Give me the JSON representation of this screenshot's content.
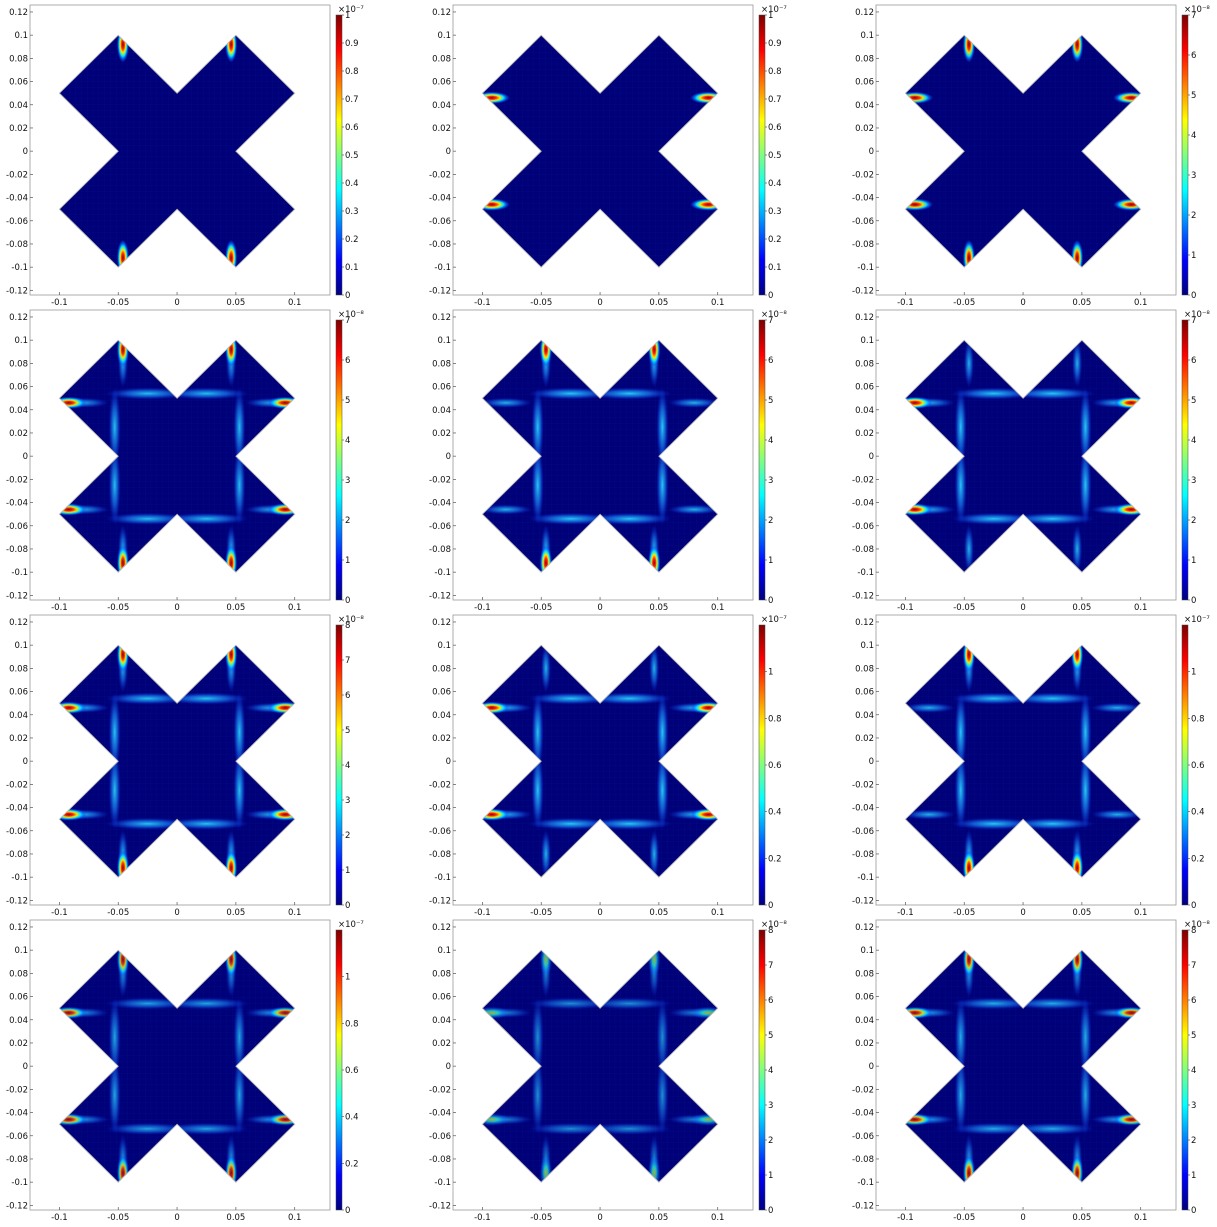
{
  "figure": {
    "rows": 4,
    "cols": 3,
    "colorbar_colors": [
      "#00007f",
      "#0000ff",
      "#007fff",
      "#00ffff",
      "#7fff7f",
      "#ffff00",
      "#ff7f00",
      "#ff0000",
      "#7f0000"
    ],
    "shape_fill": "#00007a",
    "grid_color": "#0a1e7a",
    "hotspot_colors": [
      "#0b5cff",
      "#00e5ff",
      "#ffe600",
      "#ff3a00",
      "#8b0000"
    ],
    "x_ticks": [
      "-0.1",
      "-0.05",
      "0",
      "0.05",
      "0.1"
    ],
    "y_ticks": [
      "0.12",
      "0.1",
      "0.08",
      "0.06",
      "0.04",
      "0.02",
      "0",
      "-0.02",
      "-0.04",
      "-0.06",
      "-0.08",
      "-0.1",
      "-0.12"
    ]
  },
  "panels": [
    {
      "id": "r1c1",
      "colorbar": {
        "exponent": "×10⁻⁷",
        "max": 1,
        "ticks": [
          "1",
          "0.9",
          "0.8",
          "0.7",
          "0.6",
          "0.5",
          "0.4",
          "0.3",
          "0.2",
          "0.1",
          "0"
        ]
      },
      "hotspots": "vertical-tips",
      "bands": false,
      "intensity": 1.0
    },
    {
      "id": "r1c2",
      "colorbar": {
        "exponent": "×10⁻⁷",
        "max": 1,
        "ticks": [
          "1",
          "0.9",
          "0.8",
          "0.7",
          "0.6",
          "0.5",
          "0.4",
          "0.3",
          "0.2",
          "0.1",
          "0"
        ]
      },
      "hotspots": "horizontal-tips",
      "bands": false,
      "intensity": 1.0
    },
    {
      "id": "r1c3",
      "colorbar": {
        "exponent": "×10⁻⁸",
        "max": 7,
        "ticks": [
          "7",
          "6",
          "5",
          "4",
          "3",
          "2",
          "1",
          "0"
        ]
      },
      "hotspots": "all-tips",
      "bands": false,
      "intensity": 0.9
    },
    {
      "id": "r2c1",
      "colorbar": {
        "exponent": "×10⁻⁸",
        "max": 7,
        "ticks": [
          "7",
          "6",
          "5",
          "4",
          "3",
          "2",
          "1",
          "0"
        ]
      },
      "hotspots": "all-tips",
      "bands": true,
      "intensity": 0.9
    },
    {
      "id": "r2c2",
      "colorbar": {
        "exponent": "×10⁻⁸",
        "max": 7,
        "ticks": [
          "7",
          "6",
          "5",
          "4",
          "3",
          "2",
          "1",
          "0"
        ]
      },
      "hotspots": "vertical-tips",
      "bands": true,
      "intensity": 1.0
    },
    {
      "id": "r2c3",
      "colorbar": {
        "exponent": "×10⁻⁸",
        "max": 7,
        "ticks": [
          "7",
          "6",
          "5",
          "4",
          "3",
          "2",
          "1",
          "0"
        ]
      },
      "hotspots": "horizontal-tips",
      "bands": true,
      "intensity": 1.0
    },
    {
      "id": "r3c1",
      "colorbar": {
        "exponent": "×10⁻⁸",
        "max": 8,
        "ticks": [
          "8",
          "7",
          "6",
          "5",
          "4",
          "3",
          "2",
          "1",
          "0"
        ]
      },
      "hotspots": "all-tips",
      "bands": true,
      "intensity": 0.95
    },
    {
      "id": "r3c2",
      "colorbar": {
        "exponent": "×10⁻⁷",
        "max": 1.2,
        "ticks": [
          "1",
          "0.8",
          "0.6",
          "0.4",
          "0.2",
          "0"
        ]
      },
      "hotspots": "horizontal-tips",
      "bands": true,
      "intensity": 1.0
    },
    {
      "id": "r3c3",
      "colorbar": {
        "exponent": "×10⁻⁷",
        "max": 1.2,
        "ticks": [
          "1",
          "0.8",
          "0.6",
          "0.4",
          "0.2",
          "0"
        ]
      },
      "hotspots": "vertical-tips",
      "bands": true,
      "intensity": 1.0
    },
    {
      "id": "r4c1",
      "colorbar": {
        "exponent": "×10⁻⁷",
        "max": 1.2,
        "ticks": [
          "1",
          "0.8",
          "0.6",
          "0.4",
          "0.2",
          "0"
        ]
      },
      "hotspots": "all-tips",
      "bands": true,
      "intensity": 0.6
    },
    {
      "id": "r4c2",
      "colorbar": {
        "exponent": "×10⁻⁸",
        "max": 8,
        "ticks": [
          "8",
          "7",
          "6",
          "5",
          "4",
          "3",
          "2",
          "1",
          "0"
        ]
      },
      "hotspots": "all-tips",
      "bands": true,
      "intensity": 0.35
    },
    {
      "id": "r4c3",
      "colorbar": {
        "exponent": "×10⁻⁸",
        "max": 8,
        "ticks": [
          "8",
          "7",
          "6",
          "5",
          "4",
          "3",
          "2",
          "1",
          "0"
        ]
      },
      "hotspots": "all-tips",
      "bands": true,
      "intensity": 0.7
    }
  ]
}
